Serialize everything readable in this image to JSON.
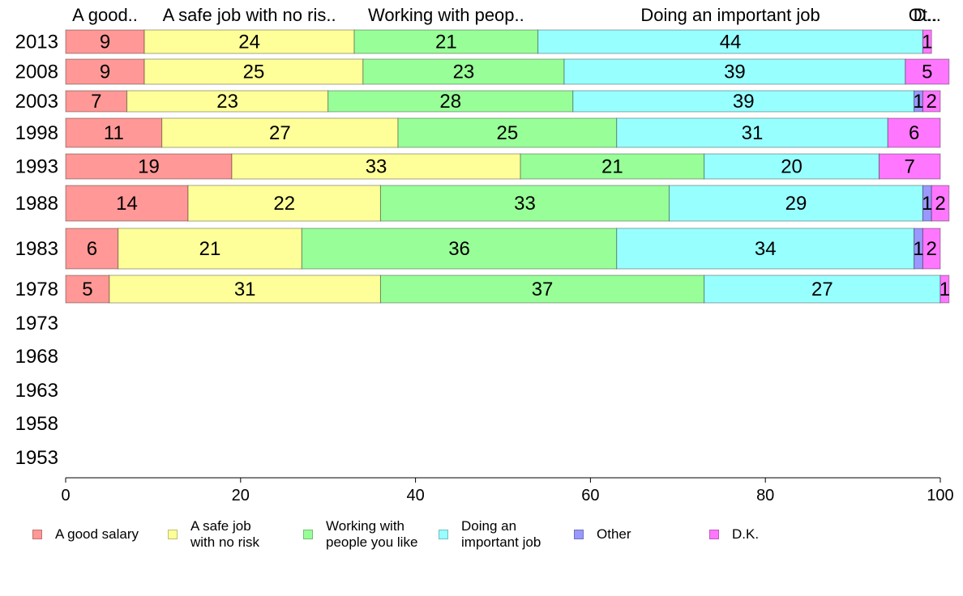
{
  "chart_data": {
    "type": "bar",
    "orientation": "horizontal",
    "stacked": true,
    "categories": [
      "2013",
      "2008",
      "2003",
      "1998",
      "1993",
      "1988",
      "1983",
      "1978",
      "1973",
      "1968",
      "1963",
      "1958",
      "1953"
    ],
    "series": [
      {
        "name": "A good salary",
        "short": "A good..",
        "color": "#ff9896",
        "values": [
          9,
          9,
          7,
          11,
          19,
          14,
          6,
          5,
          null,
          null,
          null,
          null,
          null
        ]
      },
      {
        "name": "A safe job with no risk",
        "short": "A safe job with no ris..",
        "color": "#ffff99",
        "values": [
          24,
          25,
          23,
          27,
          33,
          22,
          21,
          31,
          null,
          null,
          null,
          null,
          null
        ]
      },
      {
        "name": "Working with people you like",
        "short": "Working with peop..",
        "color": "#98ff98",
        "values": [
          21,
          23,
          28,
          25,
          21,
          33,
          36,
          37,
          null,
          null,
          null,
          null,
          null
        ]
      },
      {
        "name": "Doing an important job",
        "short": "Doing an important job",
        "color": "#98ffff",
        "values": [
          44,
          39,
          39,
          31,
          20,
          29,
          34,
          27,
          null,
          null,
          null,
          null,
          null
        ]
      },
      {
        "name": "Other",
        "short": "Ot..",
        "color": "#9898ff",
        "values": [
          0,
          0,
          1,
          0,
          0,
          1,
          1,
          0,
          null,
          null,
          null,
          null,
          null
        ]
      },
      {
        "name": "D.K.",
        "short": "D...",
        "color": "#ff77ff",
        "values": [
          1,
          5,
          2,
          6,
          7,
          2,
          2,
          1,
          null,
          null,
          null,
          null,
          null
        ]
      }
    ],
    "legend_labels": [
      "A good salary",
      "A safe job\nwith no risk",
      "Working with\npeople you like",
      "Doing an\nimportant job",
      "Other",
      "D.K."
    ],
    "xlim": [
      0,
      100
    ],
    "xticks": [
      0,
      20,
      40,
      60,
      80,
      100
    ],
    "legend_position": "bottom",
    "grid": false
  }
}
